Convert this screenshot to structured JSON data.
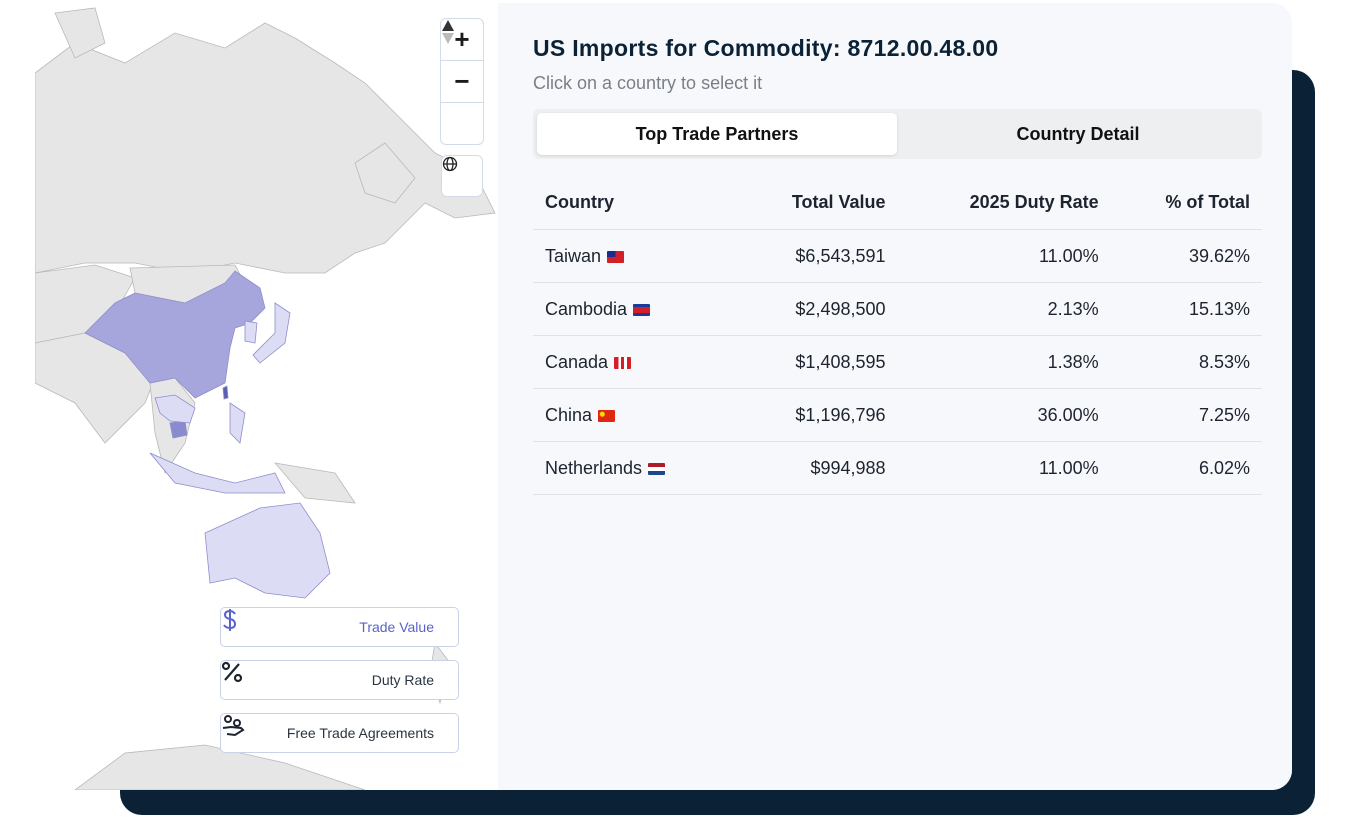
{
  "header": {
    "title": "US Imports for Commodity: 8712.00.48.00",
    "subtitle": "Click on a country to select it"
  },
  "tabs": [
    {
      "label": "Top Trade Partners",
      "selected": true
    },
    {
      "label": "Country Detail",
      "selected": false
    }
  ],
  "table": {
    "columns": [
      "Country",
      "Total Value",
      "2025 Duty Rate",
      "% of Total"
    ],
    "rows": [
      {
        "country": "Taiwan",
        "flag": "taiwan-flag",
        "value": "$6,543,591",
        "duty": "11.00%",
        "pct": "39.62%"
      },
      {
        "country": "Cambodia",
        "flag": "cambodia-flag",
        "value": "$2,498,500",
        "duty": "2.13%",
        "pct": "15.13%"
      },
      {
        "country": "Canada",
        "flag": "canada-flag",
        "value": "$1,408,595",
        "duty": "1.38%",
        "pct": "8.53%"
      },
      {
        "country": "China",
        "flag": "china-flag",
        "value": "$1,196,796",
        "duty": "36.00%",
        "pct": "7.25%"
      },
      {
        "country": "Netherlands",
        "flag": "netherlands-flag",
        "value": "$994,988",
        "duty": "11.00%",
        "pct": "6.02%"
      }
    ]
  },
  "map_controls": {
    "zoom_in": "+",
    "zoom_out": "−"
  },
  "modes": [
    {
      "label": "Trade Value",
      "icon": "dollar-icon",
      "active": true
    },
    {
      "label": "Duty Rate",
      "icon": "percent-icon",
      "active": false
    },
    {
      "label": "Free Trade Agreements",
      "icon": "handshake-icon",
      "active": false
    }
  ],
  "colors": {
    "accent": "#5a63c9",
    "dark": "#0b2236",
    "land": "#e6e6e6",
    "highlight": "#a6a6dc",
    "light_highlight": "#dcdcf5"
  }
}
